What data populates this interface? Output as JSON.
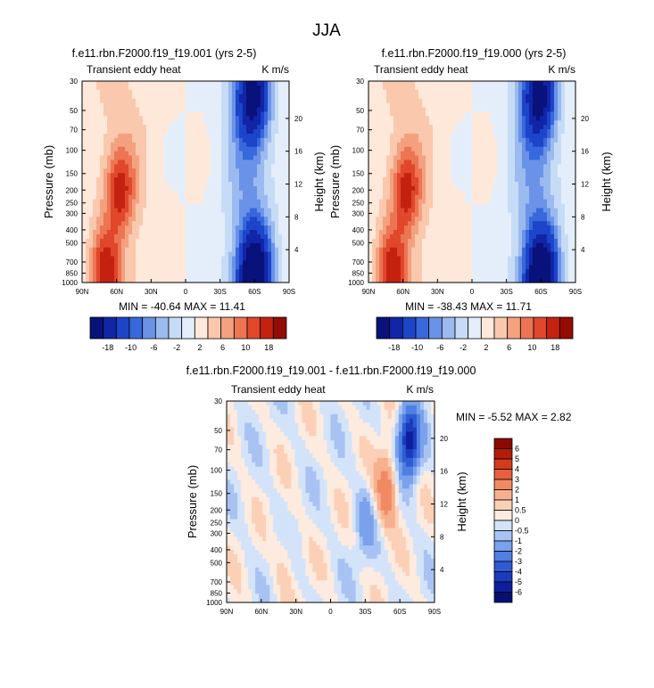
{
  "figure": {
    "title": "JJA"
  },
  "colors": {
    "panel_scale": [
      "#08127a",
      "#1125a8",
      "#1d45c9",
      "#3968dc",
      "#6a93e8",
      "#9bbaf0",
      "#c6dcf6",
      "#e4eefa",
      "#fde8da",
      "#fac8ad",
      "#f4a180",
      "#ec7553",
      "#e0472b",
      "#c4220f",
      "#940c04"
    ],
    "diff_scale": [
      "#061072",
      "#0e1f9e",
      "#1a3cbc",
      "#2f5cd4",
      "#4f7fe2",
      "#7aa1ec",
      "#a8c3f3",
      "#d3e3f9",
      "#fdebdf",
      "#fbd0b6",
      "#f7b08e",
      "#f18a63",
      "#e8603d",
      "#d43b1e",
      "#b51c0a",
      "#8a0a02"
    ],
    "nan": "#ffffff"
  },
  "chart_data": [
    {
      "type": "heatmap",
      "title": "f.e11.rbn.F2000.f19_f19.001 (yrs 2-5)",
      "subtitle_left": "Transient eddy heat",
      "subtitle_right": "K m/s",
      "xlabel": "",
      "ylabel": "Pressure (mb)",
      "ylabel_right": "Height (km)",
      "x_ticks": [
        "90N",
        "60N",
        "30N",
        "0",
        "30S",
        "60S",
        "90S"
      ],
      "y_ticks": [
        "30",
        "50",
        "70",
        "100",
        "150",
        "200",
        "250",
        "300",
        "400",
        "500",
        "700",
        "850",
        "1000"
      ],
      "height_ticks": [
        "20",
        "16",
        "12",
        "8",
        "4"
      ],
      "min_max_text": "MIN = -40.64  MAX = 11.41",
      "xlim": [
        90,
        -90
      ],
      "ylim": [
        1000,
        30
      ],
      "colorbar_levels": [
        "-18",
        "-10",
        "-6",
        "-2",
        "2",
        "6",
        "10",
        "18"
      ],
      "features": [
        {
          "kind": "warm",
          "lat": 57,
          "p": 200,
          "amp": 9
        },
        {
          "kind": "warm",
          "lat": 70,
          "p": 880,
          "amp": 10
        },
        {
          "kind": "cold",
          "lat": -60,
          "p": 870,
          "amp": -22
        },
        {
          "kind": "cold",
          "lat": -58,
          "p": 40,
          "amp": -16
        }
      ]
    },
    {
      "type": "heatmap",
      "title": "f.e11.rbn.F2000.f19_f19.000 (yrs 2-5)",
      "subtitle_left": "Transient eddy heat",
      "subtitle_right": "K m/s",
      "xlabel": "",
      "ylabel": "Pressure (mb)",
      "ylabel_right": "Height (km)",
      "x_ticks": [
        "90N",
        "60N",
        "30N",
        "0",
        "30S",
        "60S",
        "90S"
      ],
      "y_ticks": [
        "30",
        "50",
        "70",
        "100",
        "150",
        "200",
        "250",
        "300",
        "400",
        "500",
        "700",
        "850",
        "1000"
      ],
      "height_ticks": [
        "20",
        "16",
        "12",
        "8",
        "4"
      ],
      "min_max_text": "MIN = -38.43  MAX = 11.71",
      "xlim": [
        90,
        -90
      ],
      "ylim": [
        1000,
        30
      ],
      "colorbar_levels": [
        "-18",
        "-10",
        "-6",
        "-2",
        "2",
        "6",
        "10",
        "18"
      ],
      "features": [
        {
          "kind": "warm",
          "lat": 57,
          "p": 200,
          "amp": 9
        },
        {
          "kind": "warm",
          "lat": 70,
          "p": 880,
          "amp": 10
        },
        {
          "kind": "cold",
          "lat": -60,
          "p": 870,
          "amp": -21
        },
        {
          "kind": "cold",
          "lat": -58,
          "p": 40,
          "amp": -16
        }
      ]
    },
    {
      "type": "heatmap",
      "title": "f.e11.rbn.F2000.f19_f19.001 - f.e11.rbn.F2000.f19_f19.000",
      "subtitle_left": "Transient eddy heat",
      "subtitle_right": "K m/s",
      "xlabel": "",
      "ylabel": "Pressure (mb)",
      "ylabel_right": "Height (km)",
      "x_ticks": [
        "90N",
        "60N",
        "30N",
        "0",
        "30S",
        "60S",
        "90S"
      ],
      "y_ticks": [
        "30",
        "50",
        "70",
        "100",
        "150",
        "200",
        "250",
        "300",
        "400",
        "500",
        "700",
        "850",
        "1000"
      ],
      "height_ticks": [
        "20",
        "16",
        "12",
        "8",
        "4"
      ],
      "min_max_text": "MIN = -5.52  MAX =  2.82",
      "xlim": [
        90,
        -90
      ],
      "ylim": [
        1000,
        30
      ],
      "colorbar_levels": [
        "6",
        "5",
        "4",
        "3",
        "2",
        "1",
        "0.5",
        "0",
        "-0.5",
        "-1",
        "-2",
        "-3",
        "-4",
        "-5",
        "-6"
      ],
      "features": [
        {
          "kind": "warm",
          "lat": -48,
          "p": 140,
          "amp": 3
        },
        {
          "kind": "cold",
          "lat": -68,
          "p": 60,
          "amp": -5.5
        },
        {
          "kind": "cold",
          "lat": -30,
          "p": 250,
          "amp": -1.2
        },
        {
          "kind": "warm",
          "lat": 40,
          "p": 500,
          "amp": 0.6
        }
      ]
    }
  ]
}
